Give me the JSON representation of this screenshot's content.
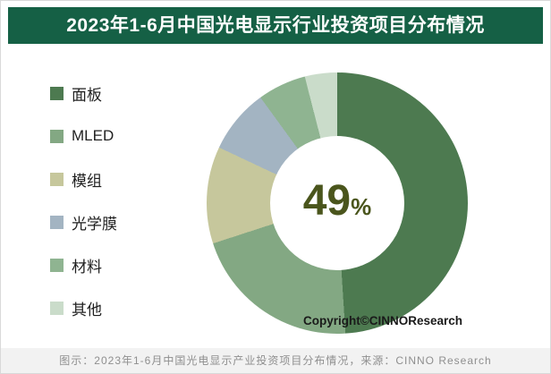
{
  "title": "2023年1-6月中国光电显示行业投资项目分布情况",
  "chart_data": {
    "type": "pie",
    "subtype": "donut",
    "title": "2023年1-6月中国光电显示行业投资项目分布情况",
    "categories": [
      "面板",
      "MLED",
      "模组",
      "光学膜",
      "材料",
      "其他"
    ],
    "values": [
      49,
      21,
      12,
      8,
      6,
      4
    ],
    "unit": "%",
    "colors": [
      "#4d7a50",
      "#83a883",
      "#c6c79c",
      "#a3b4c2",
      "#8fb491",
      "#cadcca"
    ],
    "start_angle_deg": 0,
    "direction": "clockwise",
    "legend_position": "left",
    "center_label": {
      "value": "49",
      "unit": "%"
    }
  },
  "copyright": "Copyright©CINNOResearch",
  "footer": "图示：2023年1-6月中国光电显示产业投资项目分布情况，来源：CINNO Research",
  "theme": {
    "title_bg": "#156045",
    "title_color": "#ffffff",
    "center_text_color": "#4a551c",
    "footer_bg": "#f2f2f2",
    "footer_color": "#8f8f8f"
  }
}
